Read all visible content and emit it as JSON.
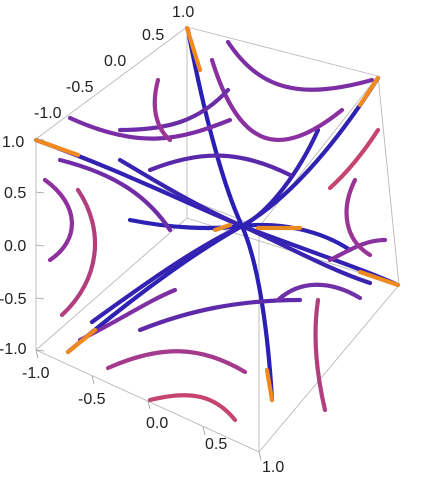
{
  "chart_data": {
    "type": "3d-parametric-curves",
    "title": "",
    "axes": {
      "x": {
        "range": [
          -1.0,
          1.0
        ],
        "ticks": [
          "-1.0",
          "-0.5",
          "0.0",
          "0.5",
          "1.0"
        ]
      },
      "y": {
        "range": [
          -1.0,
          1.0
        ],
        "ticks": [
          "-1.0",
          "-0.5",
          "0.0",
          "0.5",
          "1.0"
        ]
      },
      "z": {
        "range": [
          -1.0,
          1.0
        ],
        "ticks": [
          "-1.0",
          "-0.5",
          "0.0",
          "0.5",
          "1.0"
        ]
      }
    },
    "box": true,
    "grid": false,
    "color_scheme": [
      "#2a1fb5",
      "#7c2fa4",
      "#c6446f",
      "#f08a1e"
    ],
    "description_of_curves": "orbit-like trajectories forming a symmetric star pattern through the cube center, colored blue at center to orange at the corners"
  }
}
